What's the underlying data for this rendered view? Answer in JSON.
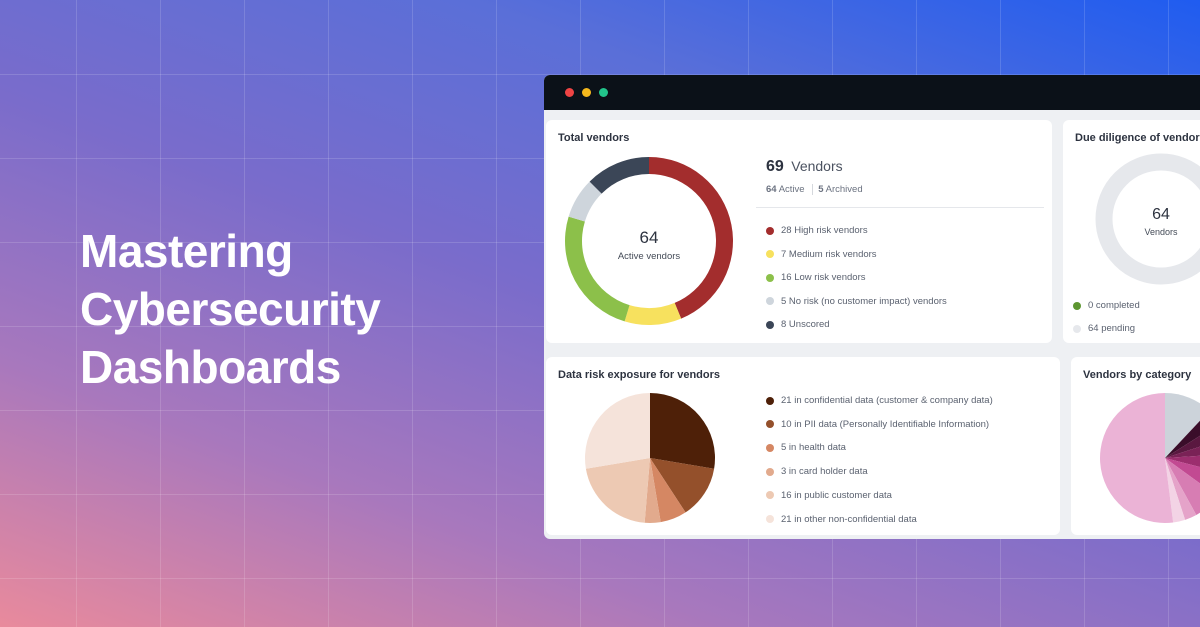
{
  "headline": [
    "Mastering",
    "Cybersecurity",
    "Dashboards"
  ],
  "window": {
    "controls": [
      {
        "name": "close",
        "color": "#ef4444"
      },
      {
        "name": "minimize",
        "color": "#f5b81c"
      },
      {
        "name": "maximize",
        "color": "#22c58b"
      }
    ]
  },
  "total_vendors": {
    "title": "Total vendors",
    "center_value": "64",
    "center_label": "Active vendors",
    "total_number": "69",
    "total_label": "Vendors",
    "active_count": "64",
    "active_label": "Active",
    "archived_count": "5",
    "archived_label": "Archived",
    "legend": [
      {
        "value": 28,
        "label": "28 High risk vendors",
        "color": "#a32d2d"
      },
      {
        "value": 7,
        "label": "7 Medium risk vendors",
        "color": "#f7e15e"
      },
      {
        "value": 16,
        "label": "16 Low risk vendors",
        "color": "#8cc04a"
      },
      {
        "value": 5,
        "label": "5 No risk (no customer impact) vendors",
        "color": "#ced5dc"
      },
      {
        "value": 8,
        "label": "8 Unscored",
        "color": "#3b4657"
      }
    ]
  },
  "due_diligence": {
    "title": "Due diligence of vendors",
    "center_value": "64",
    "center_label": "Vendors",
    "legend": [
      {
        "value": 0,
        "label": "0 completed",
        "color": "#5d9631"
      },
      {
        "value": 64,
        "label": "64 pending",
        "color": "#e6e8ec"
      }
    ]
  },
  "data_risk": {
    "title": "Data risk exposure for vendors",
    "legend": [
      {
        "value": 21,
        "label": "21 in confidential data (customer & company data)",
        "color": "#4e2008"
      },
      {
        "value": 10,
        "label": "10 in PII data (Personally Identifiable Information)",
        "color": "#94502b"
      },
      {
        "value": 5,
        "label": "5 in health data",
        "color": "#d58763"
      },
      {
        "value": 3,
        "label": "3 in card holder data",
        "color": "#e2aa8d"
      },
      {
        "value": 16,
        "label": "16 in public customer data",
        "color": "#edc9b3"
      },
      {
        "value": 21,
        "label": "21 in other non-confidential data",
        "color": "#f5e3da"
      }
    ]
  },
  "by_category": {
    "title": "Vendors by category",
    "slices": [
      {
        "value": 12,
        "color": "#ccd3da"
      },
      {
        "value": 4,
        "color": "#3a0d2a"
      },
      {
        "value": 4,
        "color": "#5a1840"
      },
      {
        "value": 4,
        "color": "#7a2256"
      },
      {
        "value": 5,
        "color": "#9c2e6e"
      },
      {
        "value": 6,
        "color": "#c24a92"
      },
      {
        "value": 7,
        "color": "#d77db3"
      },
      {
        "value": 3,
        "color": "#e5a3c9"
      },
      {
        "value": 3,
        "color": "#f3d3e5"
      },
      {
        "value": 52,
        "color": "#ebb3d6"
      }
    ]
  }
}
